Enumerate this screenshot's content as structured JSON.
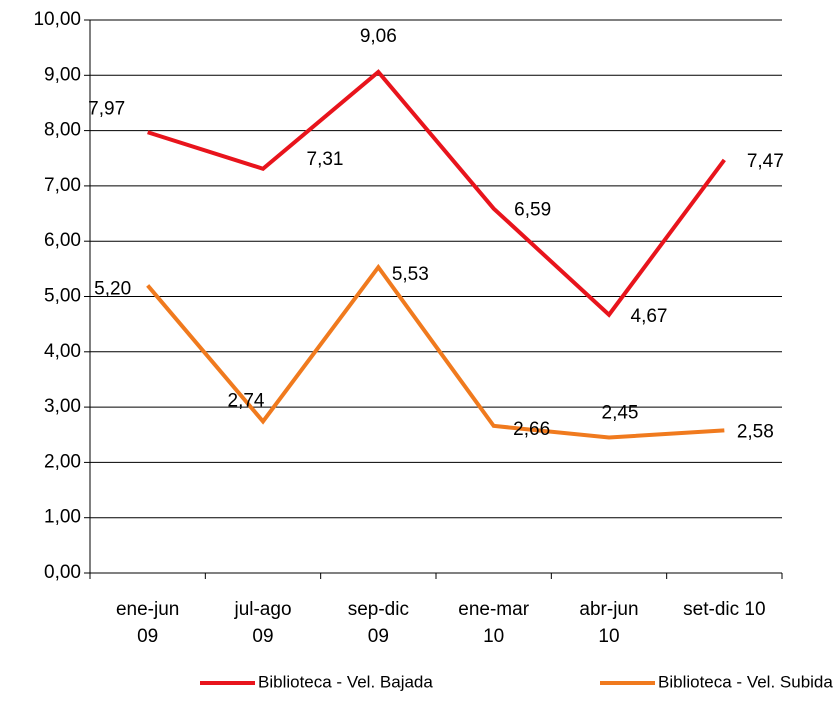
{
  "chart_data": {
    "type": "line",
    "categories": [
      "ene-jun\n09",
      "jul-ago\n09",
      "sep-dic\n09",
      "ene-mar\n10",
      "abr-jun\n10",
      "set-dic 10"
    ],
    "series": [
      {
        "name": "Biblioteca - Vel. Bajada",
        "color": "#e8141c",
        "values": [
          7.97,
          7.31,
          9.06,
          6.59,
          4.67,
          7.47
        ],
        "value_labels": [
          "7,97",
          "7,31",
          "9,06",
          "6,59",
          "4,67",
          "7,47"
        ]
      },
      {
        "name": "Biblioteca - Vel. Subida",
        "color": "#f07a1e",
        "values": [
          5.2,
          2.74,
          5.53,
          2.66,
          2.45,
          2.58
        ],
        "value_labels": [
          "5,20",
          "2,74",
          "5,53",
          "2,66",
          "2,45",
          "2,58"
        ]
      }
    ],
    "ylim": [
      0,
      10
    ],
    "yticks": [
      {
        "value": 0,
        "label": "0,00"
      },
      {
        "value": 1,
        "label": "1,00"
      },
      {
        "value": 2,
        "label": "2,00"
      },
      {
        "value": 3,
        "label": "3,00"
      },
      {
        "value": 4,
        "label": "4,00"
      },
      {
        "value": 5,
        "label": "5,00"
      },
      {
        "value": 6,
        "label": "6,00"
      },
      {
        "value": 7,
        "label": "7,00"
      },
      {
        "value": 8,
        "label": "8,00"
      },
      {
        "value": 9,
        "label": "9,00"
      },
      {
        "value": 10,
        "label": "10,00"
      }
    ],
    "grid": true,
    "legend": "bottom"
  }
}
